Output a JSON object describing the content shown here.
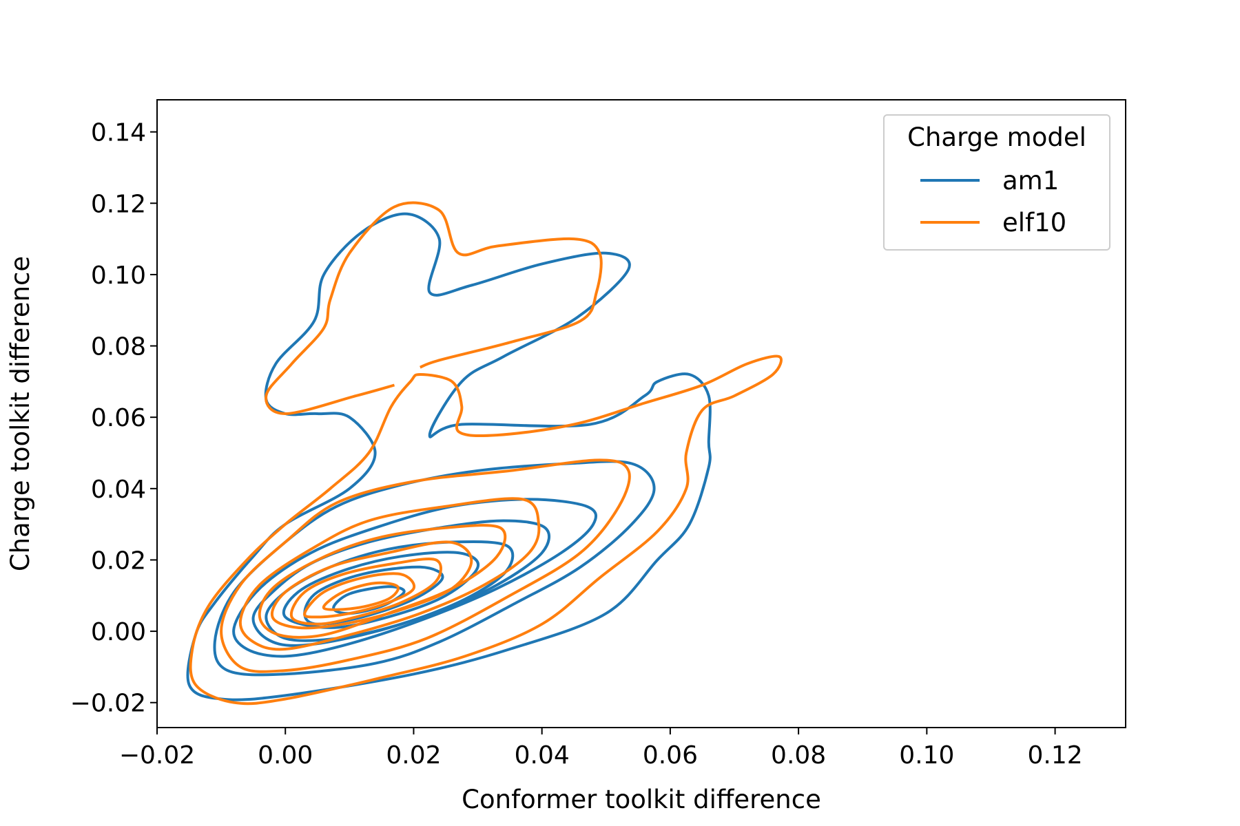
{
  "chart_data": {
    "type": "kde-contour",
    "xlabel": "Conformer toolkit difference",
    "ylabel": "Charge toolkit difference",
    "xlim": [
      -0.02,
      0.131
    ],
    "ylim": [
      -0.027,
      0.149
    ],
    "xticks": [
      -0.02,
      0.0,
      0.02,
      0.04,
      0.06,
      0.08,
      0.1,
      0.12
    ],
    "xtick_labels": [
      "−0.02",
      "0.00",
      "0.02",
      "0.04",
      "0.06",
      "0.08",
      "0.10",
      "0.12"
    ],
    "yticks": [
      -0.02,
      0.0,
      0.02,
      0.04,
      0.06,
      0.08,
      0.1,
      0.12,
      0.14
    ],
    "ytick_labels": [
      "−0.02",
      "0.00",
      "0.02",
      "0.04",
      "0.06",
      "0.08",
      "0.10",
      "0.12",
      "0.14"
    ],
    "legend": {
      "title": "Charge model",
      "placement": "top-right",
      "entries": [
        "am1",
        "elf10"
      ]
    },
    "series": [
      {
        "name": "am1",
        "color": "#1f77b4",
        "contours": [
          [
            [
              0.0,
              0.061
            ],
            [
              -0.003,
              0.065
            ],
            [
              -0.0015,
              0.075
            ],
            [
              0.0045,
              0.087
            ],
            [
              0.006,
              0.1
            ],
            [
              0.012,
              0.112
            ],
            [
              0.019,
              0.117
            ],
            [
              0.024,
              0.11
            ],
            [
              0.0225,
              0.095
            ],
            [
              0.029,
              0.097
            ],
            [
              0.04,
              0.103
            ],
            [
              0.05,
              0.106
            ],
            [
              0.0535,
              0.1015
            ],
            [
              0.0455,
              0.088
            ],
            [
              0.034,
              0.077
            ],
            [
              0.0275,
              0.07
            ],
            [
              0.0225,
              0.055
            ],
            [
              0.0275,
              0.058
            ],
            [
              0.0475,
              0.058
            ],
            [
              0.056,
              0.066
            ],
            [
              0.058,
              0.07
            ],
            [
              0.063,
              0.072
            ],
            [
              0.066,
              0.066
            ],
            [
              0.066,
              0.053
            ],
            [
              0.066,
              0.046
            ],
            [
              0.063,
              0.03
            ],
            [
              0.058,
              0.02
            ],
            [
              0.05,
              0.005
            ],
            [
              0.035,
              -0.005
            ],
            [
              0.02,
              -0.012
            ],
            [
              0.0,
              -0.018
            ],
            [
              -0.01,
              -0.019
            ],
            [
              -0.015,
              -0.015
            ],
            [
              -0.014,
              -0.001
            ],
            [
              -0.011,
              0.008
            ],
            [
              -0.005,
              0.021
            ],
            [
              0.0,
              0.03
            ],
            [
              0.01,
              0.04
            ],
            [
              0.014,
              0.05
            ],
            [
              0.01,
              0.06
            ],
            [
              0.005,
              0.061
            ],
            [
              0.0,
              0.061
            ]
          ],
          [
            [
              -0.011,
              -0.003
            ],
            [
              -0.008,
              0.011
            ],
            [
              0.0,
              0.025
            ],
            [
              0.008,
              0.035
            ],
            [
              0.018,
              0.041
            ],
            [
              0.03,
              0.045
            ],
            [
              0.044,
              0.047
            ],
            [
              0.054,
              0.047
            ],
            [
              0.0575,
              0.04
            ],
            [
              0.054,
              0.03
            ],
            [
              0.046,
              0.018
            ],
            [
              0.036,
              0.008
            ],
            [
              0.024,
              -0.003
            ],
            [
              0.014,
              -0.009
            ],
            [
              0.0,
              -0.012
            ],
            [
              -0.009,
              -0.011
            ],
            [
              -0.011,
              -0.003
            ]
          ],
          [
            [
              -0.008,
              0.001
            ],
            [
              -0.004,
              0.012
            ],
            [
              0.004,
              0.022
            ],
            [
              0.014,
              0.029
            ],
            [
              0.026,
              0.035
            ],
            [
              0.038,
              0.037
            ],
            [
              0.047,
              0.035
            ],
            [
              0.048,
              0.03
            ],
            [
              0.043,
              0.022
            ],
            [
              0.033,
              0.012
            ],
            [
              0.021,
              0.003
            ],
            [
              0.009,
              -0.004
            ],
            [
              0.0,
              -0.007
            ],
            [
              -0.006,
              -0.005
            ],
            [
              -0.008,
              0.001
            ]
          ],
          [
            [
              -0.005,
              0.004
            ],
            [
              -0.002,
              0.011
            ],
            [
              0.004,
              0.019
            ],
            [
              0.013,
              0.025
            ],
            [
              0.024,
              0.029
            ],
            [
              0.034,
              0.031
            ],
            [
              0.0405,
              0.029
            ],
            [
              0.04,
              0.022
            ],
            [
              0.033,
              0.013
            ],
            [
              0.023,
              0.005
            ],
            [
              0.012,
              -0.001
            ],
            [
              0.002,
              -0.004
            ],
            [
              -0.003,
              -0.002
            ],
            [
              -0.005,
              0.004
            ]
          ],
          [
            [
              -0.003,
              0.004
            ],
            [
              0.0,
              0.011
            ],
            [
              0.007,
              0.018
            ],
            [
              0.016,
              0.023
            ],
            [
              0.026,
              0.025
            ],
            [
              0.0345,
              0.024
            ],
            [
              0.0345,
              0.017
            ],
            [
              0.028,
              0.009
            ],
            [
              0.018,
              0.002
            ],
            [
              0.008,
              -0.002
            ],
            [
              0.0,
              -0.002
            ],
            [
              -0.003,
              0.004
            ]
          ],
          [
            [
              0.0,
              0.004
            ],
            [
              0.002,
              0.011
            ],
            [
              0.009,
              0.017
            ],
            [
              0.018,
              0.021
            ],
            [
              0.027,
              0.022
            ],
            [
              0.03,
              0.018
            ],
            [
              0.025,
              0.01
            ],
            [
              0.016,
              0.004
            ],
            [
              0.007,
              0.001
            ],
            [
              0.0,
              0.004
            ]
          ],
          [
            [
              0.003,
              0.005
            ],
            [
              0.005,
              0.011
            ],
            [
              0.012,
              0.016
            ],
            [
              0.021,
              0.018
            ],
            [
              0.0245,
              0.015
            ],
            [
              0.02,
              0.009
            ],
            [
              0.012,
              0.004
            ],
            [
              0.005,
              0.002
            ],
            [
              0.003,
              0.005
            ]
          ],
          [
            [
              0.0075,
              0.0065
            ],
            [
              0.01,
              0.0105
            ],
            [
              0.016,
              0.0125
            ],
            [
              0.0185,
              0.011
            ],
            [
              0.015,
              0.007
            ],
            [
              0.01,
              0.005
            ],
            [
              0.0075,
              0.0065
            ]
          ]
        ]
      },
      {
        "name": "elf10",
        "color": "#ff7f0e",
        "contours": [
          [
            [
              0.0195,
              0.07
            ],
            [
              0.021,
              0.072
            ],
            [
              0.026,
              0.07
            ],
            [
              0.0275,
              0.063
            ],
            [
              0.027,
              0.056
            ],
            [
              0.033,
              0.055
            ],
            [
              0.045,
              0.058
            ],
            [
              0.056,
              0.064
            ],
            [
              0.065,
              0.069
            ],
            [
              0.072,
              0.075
            ],
            [
              0.077,
              0.077
            ],
            [
              0.076,
              0.072
            ],
            [
              0.07,
              0.066
            ],
            [
              0.065,
              0.062
            ],
            [
              0.0625,
              0.05
            ],
            [
              0.0625,
              0.04
            ],
            [
              0.058,
              0.028
            ],
            [
              0.049,
              0.015
            ],
            [
              0.04,
              0.002
            ],
            [
              0.028,
              -0.007
            ],
            [
              0.015,
              -0.013
            ],
            [
              0.0,
              -0.019
            ],
            [
              -0.008,
              -0.02
            ],
            [
              -0.014,
              -0.015
            ],
            [
              -0.0145,
              -0.005
            ],
            [
              -0.012,
              0.007
            ],
            [
              -0.006,
              0.02
            ],
            [
              0.0,
              0.03
            ],
            [
              0.007,
              0.04
            ],
            [
              0.013,
              0.05
            ],
            [
              0.0165,
              0.063
            ],
            [
              0.0195,
              0.07
            ]
          ],
          [
            [
              0.017,
              0.069
            ],
            [
              0.011,
              0.066
            ],
            [
              0.0,
              0.061
            ],
            [
              -0.003,
              0.066
            ],
            [
              0.001,
              0.075
            ],
            [
              0.006,
              0.085
            ],
            [
              0.007,
              0.093
            ],
            [
              0.01,
              0.106
            ],
            [
              0.017,
              0.119
            ],
            [
              0.024,
              0.118
            ],
            [
              0.027,
              0.106
            ],
            [
              0.033,
              0.108
            ],
            [
              0.045,
              0.11
            ],
            [
              0.049,
              0.106
            ],
            [
              0.0485,
              0.095
            ],
            [
              0.046,
              0.087
            ],
            [
              0.035,
              0.081
            ],
            [
              0.024,
              0.076
            ],
            [
              0.021,
              0.074
            ]
          ],
          [
            [
              -0.01,
              0.0
            ],
            [
              -0.007,
              0.013
            ],
            [
              0.0,
              0.025
            ],
            [
              0.008,
              0.036
            ],
            [
              0.02,
              0.042
            ],
            [
              0.035,
              0.045
            ],
            [
              0.049,
              0.048
            ],
            [
              0.0535,
              0.045
            ],
            [
              0.052,
              0.035
            ],
            [
              0.046,
              0.022
            ],
            [
              0.035,
              0.01
            ],
            [
              0.022,
              -0.002
            ],
            [
              0.01,
              -0.008
            ],
            [
              0.0,
              -0.011
            ],
            [
              -0.007,
              -0.01
            ],
            [
              -0.01,
              0.0
            ]
          ],
          [
            [
              -0.007,
              0.003
            ],
            [
              -0.004,
              0.013
            ],
            [
              0.004,
              0.023
            ],
            [
              0.013,
              0.031
            ],
            [
              0.025,
              0.035
            ],
            [
              0.037,
              0.037
            ],
            [
              0.0395,
              0.03
            ],
            [
              0.038,
              0.022
            ],
            [
              0.031,
              0.013
            ],
            [
              0.021,
              0.005
            ],
            [
              0.01,
              -0.001
            ],
            [
              0.0,
              -0.005
            ],
            [
              -0.005,
              -0.003
            ],
            [
              -0.007,
              0.003
            ]
          ],
          [
            [
              -0.004,
              0.004
            ],
            [
              -0.002,
              0.012
            ],
            [
              0.005,
              0.02
            ],
            [
              0.014,
              0.026
            ],
            [
              0.025,
              0.029
            ],
            [
              0.0335,
              0.029
            ],
            [
              0.033,
              0.021
            ],
            [
              0.026,
              0.012
            ],
            [
              0.016,
              0.005
            ],
            [
              0.006,
              -0.001
            ],
            [
              -0.001,
              -0.001
            ],
            [
              -0.004,
              0.004
            ]
          ],
          [
            [
              -0.002,
              0.004
            ],
            [
              0.0,
              0.011
            ],
            [
              0.007,
              0.018
            ],
            [
              0.016,
              0.022
            ],
            [
              0.0255,
              0.025
            ],
            [
              0.029,
              0.02
            ],
            [
              0.026,
              0.012
            ],
            [
              0.018,
              0.006
            ],
            [
              0.009,
              0.002
            ],
            [
              0.002,
              0.001
            ],
            [
              -0.002,
              0.004
            ]
          ],
          [
            [
              0.001,
              0.004
            ],
            [
              0.003,
              0.011
            ],
            [
              0.009,
              0.016
            ],
            [
              0.017,
              0.019
            ],
            [
              0.0235,
              0.02
            ],
            [
              0.0235,
              0.014
            ],
            [
              0.018,
              0.008
            ],
            [
              0.011,
              0.004
            ],
            [
              0.005,
              0.002
            ],
            [
              0.001,
              0.004
            ]
          ],
          [
            [
              0.003,
              0.005
            ],
            [
              0.006,
              0.011
            ],
            [
              0.012,
              0.015
            ],
            [
              0.018,
              0.016
            ],
            [
              0.02,
              0.012
            ],
            [
              0.016,
              0.008
            ],
            [
              0.01,
              0.005
            ],
            [
              0.005,
              0.004
            ],
            [
              0.003,
              0.005
            ]
          ],
          [
            [
              0.006,
              0.0065
            ],
            [
              0.009,
              0.011
            ],
            [
              0.014,
              0.0135
            ],
            [
              0.0175,
              0.0125
            ],
            [
              0.016,
              0.009
            ],
            [
              0.011,
              0.0065
            ],
            [
              0.006,
              0.0065
            ]
          ]
        ]
      }
    ]
  }
}
